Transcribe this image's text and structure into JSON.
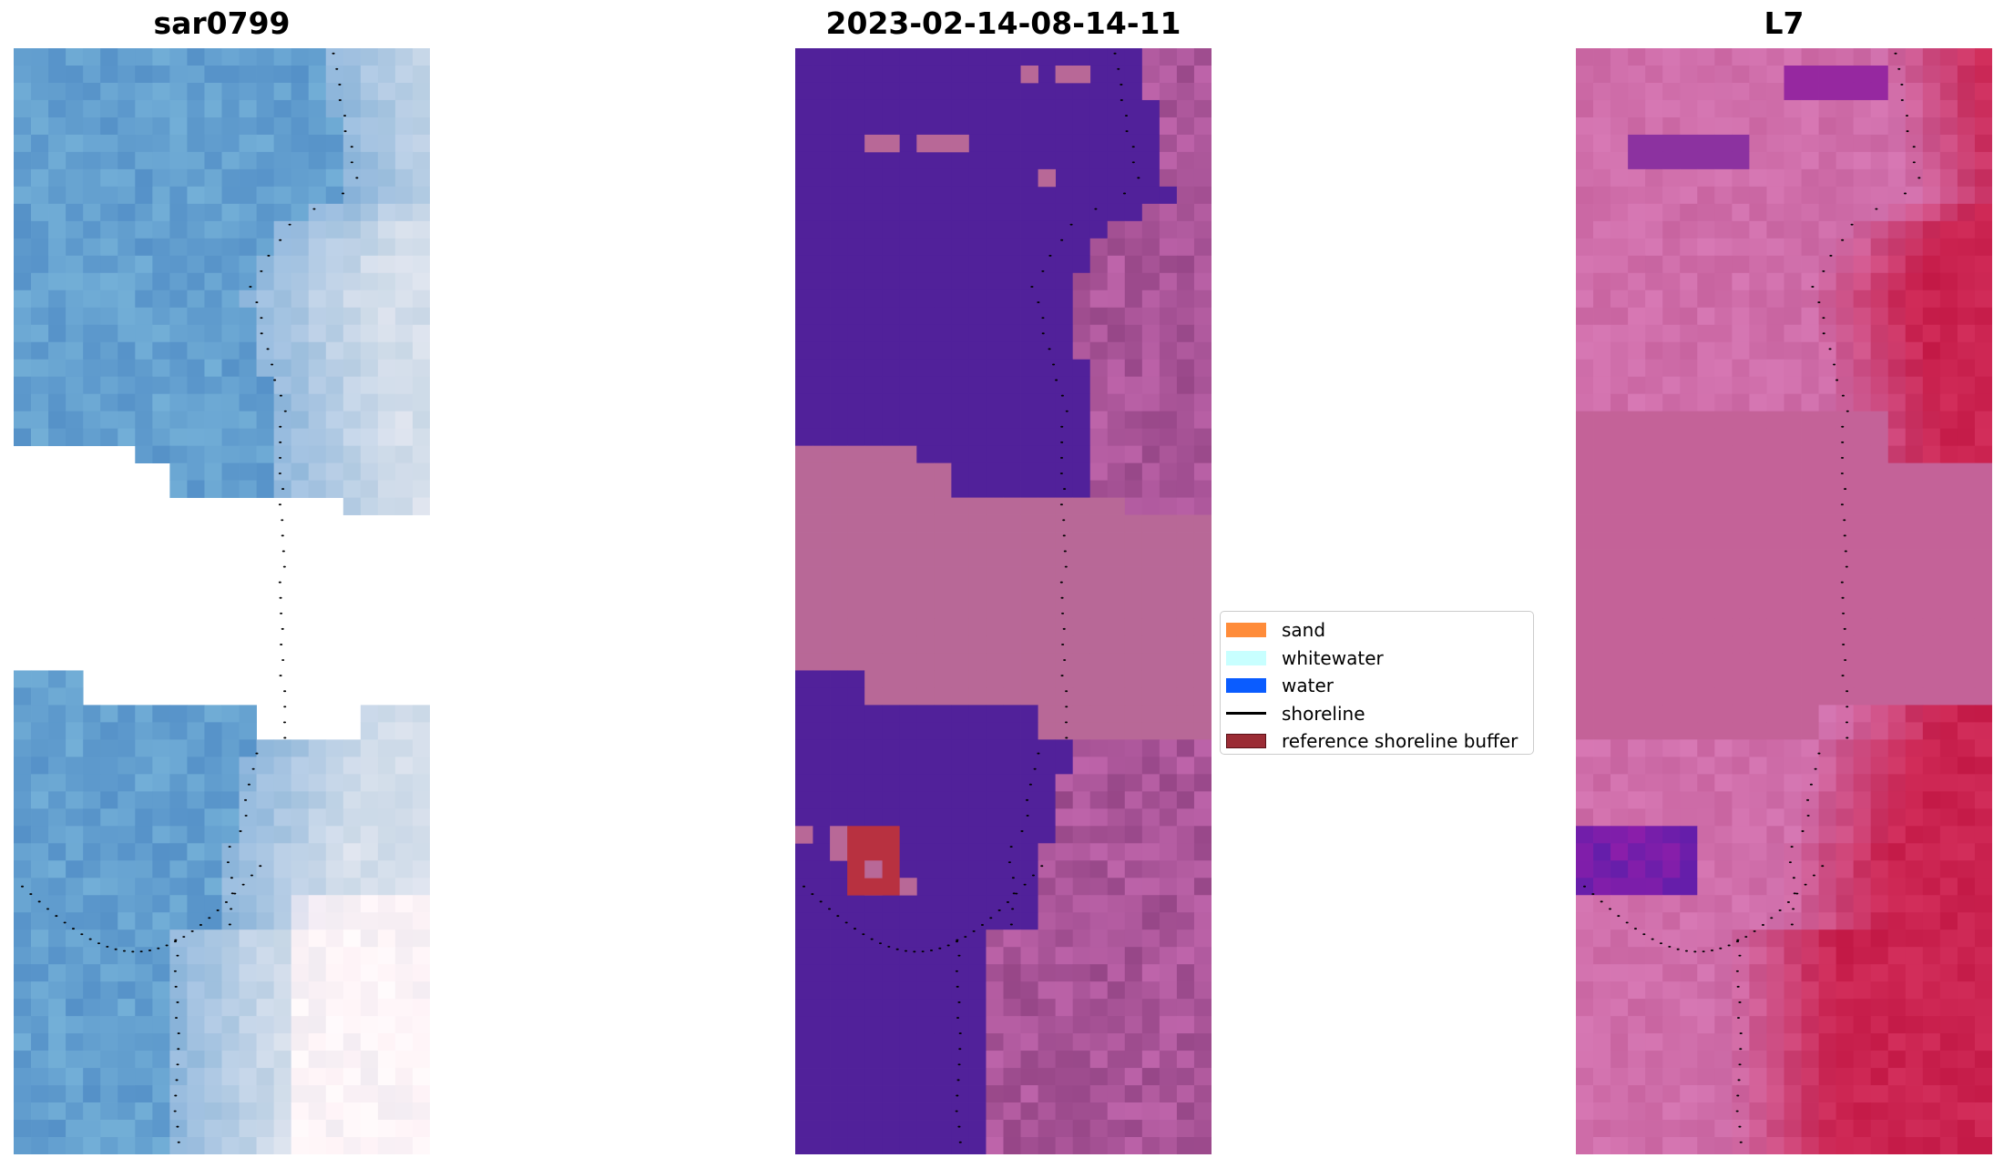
{
  "panels": [
    {
      "id": "rgb",
      "title": "sar0799"
    },
    {
      "id": "classified",
      "title": "2023-02-14-08-14-11"
    },
    {
      "id": "index",
      "title": "L7"
    }
  ],
  "legend": {
    "placement": "center-right of middle panel",
    "items": [
      {
        "label": "sand",
        "kind": "patch",
        "color": "#ff8c3a"
      },
      {
        "label": "whitewater",
        "kind": "patch",
        "color": "#c8ffff"
      },
      {
        "label": "water",
        "kind": "patch",
        "color": "#0a5cff"
      },
      {
        "label": "shoreline",
        "kind": "line",
        "color": "#000000"
      },
      {
        "label": "reference shoreline buffer",
        "kind": "patch",
        "color": "#9b2c35",
        "edge": "#5a1018"
      }
    ]
  },
  "colors": {
    "water_class": "#51219a",
    "nodata_mask": "#b86897",
    "reference_buffer": "#b83140",
    "shoreline": "#000000"
  }
}
